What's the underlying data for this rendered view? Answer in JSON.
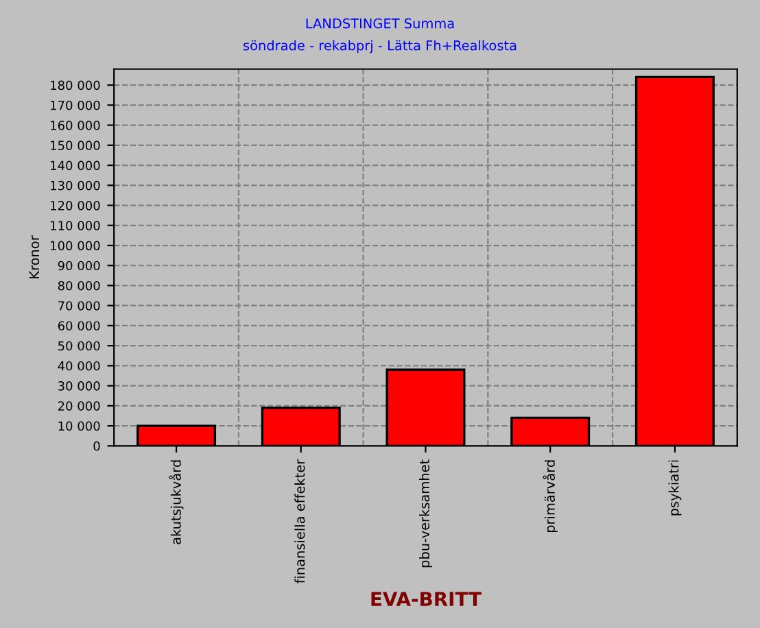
{
  "chart_data": {
    "type": "bar",
    "title": "LANDSTINGET Summa",
    "subtitle": "söndrade - rekabprj - Lätta Fh+Realkosta",
    "xlabel": "EVA-BRITT",
    "ylabel": "Kronor",
    "categories": [
      "akutsjukvård",
      "finansiella effekter",
      "pbu-verksamhet",
      "primärvård",
      "psykiatri"
    ],
    "values": [
      10000,
      19000,
      38000,
      14000,
      184000
    ],
    "color": "#ff0000",
    "ylim": [
      0,
      188000
    ],
    "yticks": [
      {
        "value": 0,
        "label": "0"
      },
      {
        "value": 10000,
        "label": "10 000"
      },
      {
        "value": 20000,
        "label": "20 000"
      },
      {
        "value": 30000,
        "label": "30 000"
      },
      {
        "value": 40000,
        "label": "40 000"
      },
      {
        "value": 50000,
        "label": "50 000"
      },
      {
        "value": 60000,
        "label": "60 000"
      },
      {
        "value": 70000,
        "label": "70 000"
      },
      {
        "value": 80000,
        "label": "80 000"
      },
      {
        "value": 90000,
        "label": "90 000"
      },
      {
        "value": 100000,
        "label": "100 000"
      },
      {
        "value": 110000,
        "label": "110 000"
      },
      {
        "value": 120000,
        "label": "120 000"
      },
      {
        "value": 130000,
        "label": "130 000"
      },
      {
        "value": 140000,
        "label": "140 000"
      },
      {
        "value": 150000,
        "label": "150 000"
      },
      {
        "value": 160000,
        "label": "160 000"
      },
      {
        "value": 170000,
        "label": "170 000"
      },
      {
        "value": 180000,
        "label": "180 000"
      }
    ],
    "grid": true
  }
}
